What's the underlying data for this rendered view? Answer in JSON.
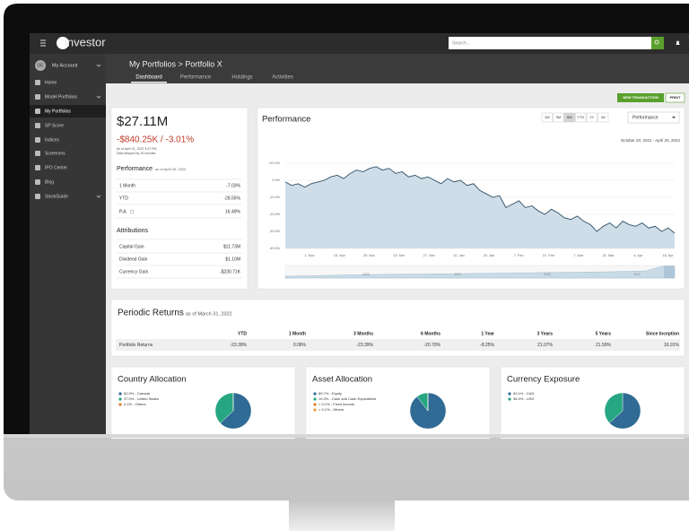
{
  "nav": {
    "logo": "investor",
    "search_placeholder": "Search..."
  },
  "sidebar": {
    "avatar": "GE",
    "account": "My Account",
    "items": [
      "Home",
      "Model Portfolios",
      "My Portfolios",
      "SP Score",
      "Indices",
      "Screeners",
      "IPO Center",
      "Blog",
      "StockGuide"
    ]
  },
  "header": {
    "breadcrumb": "My Portfolios > Portfolio X",
    "tabs": [
      "Dashboard",
      "Performance",
      "Holdings",
      "Activities"
    ]
  },
  "actions": [
    "NEW TRANSACTION",
    "PRINT"
  ],
  "summary": {
    "value": "$27.11M",
    "change": "-$840.25K / -3.01%",
    "as_of": "As of April 21, 2022 3:47 PM",
    "delay": "Data delayed by 15 minutes",
    "performance_title": "Performance",
    "performance_as_of": "as of April 20, 2022",
    "performance_rows": [
      [
        "1 Month",
        "-7.03%"
      ],
      [
        "YTD",
        "-28.55%"
      ],
      [
        "P.A.",
        "16.49%"
      ]
    ],
    "attributions_title": "Attributions",
    "attribution_rows": [
      [
        "Capital Gain",
        "$11.73M"
      ],
      [
        "Dividend Gain",
        "$1.10M"
      ],
      [
        "Currency Gain",
        "-$230.71K"
      ]
    ]
  },
  "performance": {
    "title": "Performance",
    "ranges": [
      "1M",
      "3M",
      "6M",
      "YTD",
      "1Y",
      "All"
    ],
    "selected": "Performance",
    "date_range": "October 20, 2021 - April 20, 2022",
    "ylim": [
      -40,
      10
    ],
    "yticks": [
      {
        "value": 10,
        "label": "+10.0%"
      },
      {
        "value": 0,
        "label": "0.0%"
      },
      {
        "value": -10,
        "label": "-10.0%"
      },
      {
        "value": -20,
        "label": "-20.0%"
      },
      {
        "value": -30,
        "label": "-30.0%"
      },
      {
        "value": -40,
        "label": "-40.0%"
      }
    ],
    "xticks": [
      "1. Nov",
      "15. Nov",
      "29. Nov",
      "13. Dec",
      "27. Dec",
      "10. Jan",
      "24. Jan",
      "7. Feb",
      "21. Feb",
      "7. Mar",
      "21. Mar",
      "4. Apr",
      "18. Apr"
    ],
    "navigator_labels": [
      "2020",
      "2021",
      "2022",
      "2022"
    ],
    "values": [
      -1,
      -3,
      -2,
      -4,
      -2,
      -1,
      0,
      2,
      3,
      1,
      4,
      6,
      5,
      7,
      8,
      6,
      7,
      4,
      5,
      2,
      3,
      1,
      2,
      0,
      -2,
      1,
      -1,
      0,
      -3,
      -2,
      -6,
      -8,
      -10,
      -9,
      -16,
      -14,
      -12,
      -16,
      -15,
      -18,
      -20,
      -17,
      -19,
      -22,
      -23,
      -21,
      -24,
      -26,
      -30,
      -27,
      -25,
      -28,
      -24,
      -26,
      -27,
      -25,
      -28,
      -27,
      -30,
      -28,
      -31
    ]
  },
  "periodic": {
    "title": "Periodic Returns",
    "as_of": "as of March 31, 2022",
    "columns": [
      "YTD",
      "1 Month",
      "3 Months",
      "6 Months",
      "1 Year",
      "3 Years",
      "5 Years",
      "Since Inception"
    ],
    "rows": [
      [
        "Portfolio Returns",
        "-23.39%",
        "0.06%",
        "-23.39%",
        "-20.70%",
        "-8.25%",
        "21.07%",
        "21.59%",
        "16.91%"
      ]
    ]
  },
  "allocations": [
    {
      "title": "Country Allocation",
      "labels": [
        "62.9% - Canada",
        "37.0% - United States",
        "0.1% - Others"
      ],
      "values": [
        62.9,
        37.0,
        0.1
      ],
      "colors": [
        "#2f6b94",
        "#27a682",
        "#e27b2b"
      ]
    },
    {
      "title": "Asset Allocation",
      "labels": [
        "89.7% - Equity",
        "10.3% - Cash and Cash Equivalents",
        "< 0.1% - Fixed Income",
        "< 0.1% - Others"
      ],
      "values": [
        89.7,
        10.3,
        0.05,
        0.05
      ],
      "colors": [
        "#2f6b94",
        "#27a682",
        "#e27b2b",
        "#e9a23b"
      ]
    },
    {
      "title": "Currency Exposure",
      "labels": [
        "63.1% - CAD",
        "36.9% - USD"
      ],
      "values": [
        63.1,
        36.9
      ],
      "colors": [
        "#2f6b94",
        "#27a682"
      ]
    }
  ]
}
